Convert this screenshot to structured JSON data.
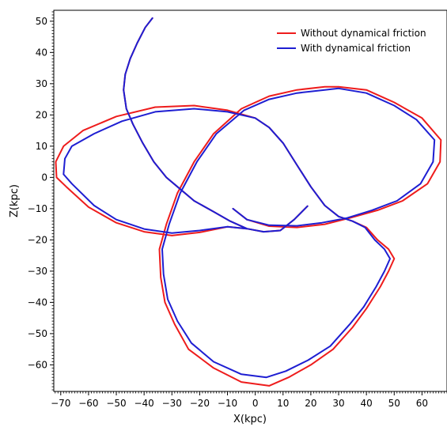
{
  "chart_data": {
    "type": "line",
    "title": "",
    "xlabel": "X(kpc)",
    "ylabel": "Z(kpc)",
    "xlim": [
      -72.5,
      69
    ],
    "ylim": [
      -68.5,
      53.5
    ],
    "x_ticks": [
      -70,
      -60,
      -50,
      -40,
      -30,
      -20,
      -10,
      0,
      10,
      20,
      30,
      40,
      50,
      60
    ],
    "y_ticks": [
      50,
      40,
      30,
      20,
      10,
      0,
      -10,
      -20,
      -30,
      -40,
      -50,
      -60
    ],
    "x_tick_labels": [
      "−70",
      "−60",
      "−50",
      "−40",
      "−30",
      "−20",
      "−10",
      "0",
      "10",
      "20",
      "30",
      "40",
      "50",
      "60"
    ],
    "y_tick_labels": [
      "50",
      "40",
      "30",
      "20",
      "10",
      "0",
      "−10",
      "−20",
      "−30",
      "−40",
      "−50",
      "−60"
    ],
    "grid": false,
    "legend": "top-right",
    "series": [
      {
        "name": "Without dynamical friction",
        "color": "#ee1c1c",
        "points": [
          [
            -37,
            51
          ],
          [
            -39.6,
            48
          ],
          [
            -42.5,
            43
          ],
          [
            -45,
            38
          ],
          [
            -46.8,
            33
          ],
          [
            -47.4,
            28
          ],
          [
            -46.4,
            22
          ],
          [
            -44,
            17
          ],
          [
            -40.5,
            11
          ],
          [
            -36.5,
            5
          ],
          [
            -32,
            0
          ],
          [
            -28,
            -3
          ],
          [
            -22,
            -7.5
          ],
          [
            -15,
            -11
          ],
          [
            -9,
            -14
          ],
          [
            -3,
            -16.4
          ],
          [
            3,
            -17.4
          ],
          [
            9,
            -17
          ],
          [
            14,
            -13.5
          ],
          [
            18.8,
            -9.2
          ],
          [
            14,
            -13.5
          ],
          [
            9,
            -17
          ],
          [
            3,
            -17.4
          ],
          [
            -3,
            -16.4
          ],
          [
            -10,
            -15.8
          ],
          [
            -20,
            -17.6
          ],
          [
            -30,
            -18.6
          ],
          [
            -40,
            -17.4
          ],
          [
            -50,
            -14.5
          ],
          [
            -60,
            -9.5
          ],
          [
            -68,
            -3
          ],
          [
            -71.5,
            0
          ],
          [
            -71.8,
            5
          ],
          [
            -69,
            10
          ],
          [
            -62,
            15
          ],
          [
            -50,
            19.5
          ],
          [
            -36,
            22.5
          ],
          [
            -22,
            23
          ],
          [
            -10,
            21.5
          ],
          [
            0,
            19
          ],
          [
            5,
            16
          ],
          [
            10,
            11
          ],
          [
            15,
            4
          ],
          [
            20,
            -3
          ],
          [
            25,
            -9
          ],
          [
            30,
            -12.5
          ],
          [
            35,
            -14
          ],
          [
            40,
            -16
          ],
          [
            44,
            -20
          ],
          [
            48,
            -23
          ],
          [
            50,
            -26
          ],
          [
            48,
            -30
          ],
          [
            45,
            -35
          ],
          [
            40,
            -42
          ],
          [
            35,
            -48
          ],
          [
            28,
            -55
          ],
          [
            20,
            -60
          ],
          [
            12,
            -64
          ],
          [
            5,
            -66.7
          ],
          [
            -5,
            -65.5
          ],
          [
            -15,
            -61
          ],
          [
            -24,
            -55
          ],
          [
            -29,
            -47
          ],
          [
            -32.5,
            -40
          ],
          [
            -34,
            -32
          ],
          [
            -34.5,
            -23
          ],
          [
            -32,
            -15
          ],
          [
            -28,
            -5
          ],
          [
            -22,
            5
          ],
          [
            -15,
            14
          ],
          [
            -5,
            22
          ],
          [
            5,
            26
          ],
          [
            15,
            28
          ],
          [
            25,
            29
          ],
          [
            30,
            29
          ],
          [
            40,
            28
          ],
          [
            50,
            24
          ],
          [
            60,
            19
          ],
          [
            66.8,
            12
          ],
          [
            66.5,
            5
          ],
          [
            62,
            -2
          ],
          [
            53,
            -7.5
          ],
          [
            44,
            -10.5
          ],
          [
            34,
            -13
          ],
          [
            25,
            -15
          ],
          [
            15,
            -16
          ],
          [
            5,
            -15.6
          ],
          [
            -3,
            -13.5
          ],
          [
            -8,
            -10
          ]
        ]
      },
      {
        "name": "With dynamical friction",
        "color": "#1e1ed2",
        "points": [
          [
            -37,
            51
          ],
          [
            -39.6,
            48
          ],
          [
            -42.5,
            43
          ],
          [
            -45,
            38
          ],
          [
            -46.8,
            33
          ],
          [
            -47.4,
            28
          ],
          [
            -46.4,
            22
          ],
          [
            -44,
            17
          ],
          [
            -40.5,
            11
          ],
          [
            -36.5,
            5
          ],
          [
            -32,
            0
          ],
          [
            -28,
            -3
          ],
          [
            -22,
            -7.5
          ],
          [
            -15,
            -11
          ],
          [
            -9,
            -14
          ],
          [
            -3,
            -16.4
          ],
          [
            3,
            -17.4
          ],
          [
            9,
            -17
          ],
          [
            14,
            -13.5
          ],
          [
            18.8,
            -9.2
          ],
          [
            14,
            -13.5
          ],
          [
            9,
            -17
          ],
          [
            3,
            -17.4
          ],
          [
            -3,
            -16.4
          ],
          [
            -10,
            -15.8
          ],
          [
            -20,
            -17
          ],
          [
            -30,
            -17.8
          ],
          [
            -40,
            -16.5
          ],
          [
            -50,
            -13.5
          ],
          [
            -58,
            -9
          ],
          [
            -66,
            -2
          ],
          [
            -69,
            1
          ],
          [
            -68.5,
            6
          ],
          [
            -66,
            10
          ],
          [
            -58,
            14
          ],
          [
            -48,
            18
          ],
          [
            -36,
            21
          ],
          [
            -22,
            22
          ],
          [
            -10,
            21
          ],
          [
            0,
            19
          ],
          [
            5,
            16
          ],
          [
            10,
            11
          ],
          [
            15,
            4
          ],
          [
            20,
            -3
          ],
          [
            25,
            -9
          ],
          [
            30,
            -12.5
          ],
          [
            35,
            -14
          ],
          [
            39.5,
            -16
          ],
          [
            43,
            -20
          ],
          [
            46.5,
            -23
          ],
          [
            48.5,
            -26
          ],
          [
            46.5,
            -30
          ],
          [
            43.5,
            -35
          ],
          [
            39,
            -41.5
          ],
          [
            34,
            -47
          ],
          [
            27,
            -54
          ],
          [
            19,
            -58.5
          ],
          [
            11,
            -62
          ],
          [
            4,
            -64
          ],
          [
            -5,
            -63
          ],
          [
            -15,
            -59
          ],
          [
            -23,
            -53
          ],
          [
            -28,
            -46
          ],
          [
            -31.5,
            -39
          ],
          [
            -33,
            -31
          ],
          [
            -33.5,
            -23
          ],
          [
            -31,
            -15
          ],
          [
            -27,
            -5
          ],
          [
            -21,
            5
          ],
          [
            -14,
            14
          ],
          [
            -4,
            21.5
          ],
          [
            5,
            25
          ],
          [
            15,
            27
          ],
          [
            25,
            28
          ],
          [
            30,
            28.5
          ],
          [
            40,
            27
          ],
          [
            50,
            23
          ],
          [
            58,
            18.5
          ],
          [
            64.5,
            12
          ],
          [
            64,
            5
          ],
          [
            59.5,
            -2
          ],
          [
            51,
            -7.5
          ],
          [
            42,
            -10.5
          ],
          [
            33,
            -13
          ],
          [
            24,
            -14.5
          ],
          [
            15,
            -15.5
          ],
          [
            5,
            -15.3
          ],
          [
            -3,
            -13.5
          ],
          [
            -8,
            -10
          ]
        ]
      }
    ]
  }
}
